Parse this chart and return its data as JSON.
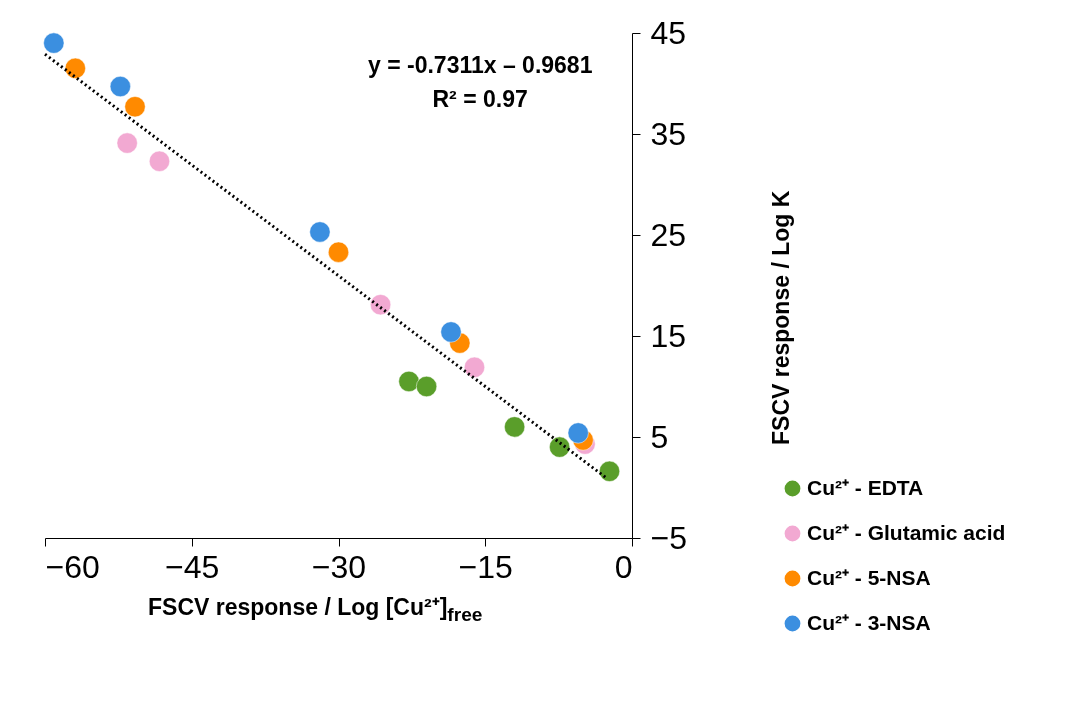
{
  "chart_data": {
    "type": "scatter",
    "xlabel": "FSCV response / Log [Cu²⁺]$_{free}$",
    "ylabel": "FSCV response / Log K",
    "annotations": [
      "y = -0.7311x – 0.9681",
      "R² = 0.97"
    ],
    "xlim": [
      -60,
      0
    ],
    "xticks": [
      -60,
      -45,
      -30,
      -15,
      0
    ],
    "ylim": [
      -5,
      45
    ],
    "yticks": [
      -5,
      5,
      15,
      25,
      35,
      45
    ],
    "legend": "bottom right",
    "marker": "circle",
    "series": [
      {
        "name": "Cu²⁺ - EDTA",
        "color": "#5a9e2a",
        "x": [
          -22.8,
          -21.0,
          -12.0,
          -7.4,
          -2.3
        ],
        "values": [
          10.5,
          10.0,
          6.0,
          4.0,
          1.6
        ]
      },
      {
        "name": "Cu²⁺ - Glutamic acid",
        "color": "#f2a9d2",
        "x": [
          -51.6,
          -48.3,
          -25.7,
          -16.1,
          -4.8
        ],
        "values": [
          34.1,
          32.3,
          18.1,
          11.9,
          4.3
        ]
      },
      {
        "name": "Cu²⁺ - 5-NSA",
        "color": "#ff8a00",
        "x": [
          -56.9,
          -50.8,
          -30.0,
          -17.6,
          -5.0
        ],
        "values": [
          41.5,
          37.7,
          23.3,
          14.3,
          4.7
        ]
      },
      {
        "name": "Cu²⁺ - 3-NSA",
        "color": "#3b8fe0",
        "x": [
          -59.1,
          -52.3,
          -31.9,
          -18.5,
          -5.5
        ],
        "values": [
          44.0,
          39.7,
          25.3,
          15.4,
          5.4
        ]
      },
      {
        "type": "line",
        "color": "#000000",
        "line_style": "dotted",
        "marker": "none",
        "x": [
          -60,
          -2.5
        ],
        "values": [
          42.9,
          0.86
        ]
      }
    ]
  }
}
